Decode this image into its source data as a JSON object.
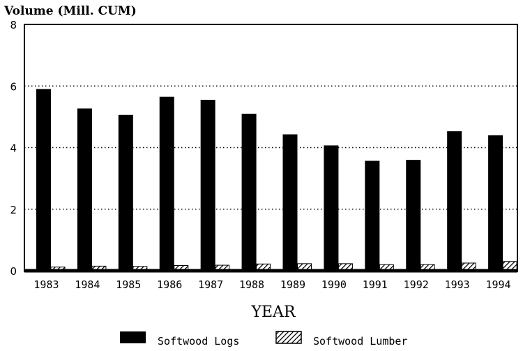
{
  "chart_data": {
    "type": "bar",
    "ylabel": "Volume (Mill. CUM)",
    "xlabel": "YEAR",
    "categories": [
      "1983",
      "1984",
      "1985",
      "1986",
      "1987",
      "1988",
      "1989",
      "1990",
      "1991",
      "1992",
      "1993",
      "1994"
    ],
    "series": [
      {
        "name": "Softwood Logs",
        "values": [
          5.9,
          5.27,
          5.06,
          5.65,
          5.55,
          5.1,
          4.43,
          4.07,
          3.57,
          3.6,
          4.53,
          4.4
        ],
        "fill": "solid",
        "color": "#000000"
      },
      {
        "name": "Softwood Lumber",
        "values": [
          0.12,
          0.15,
          0.14,
          0.17,
          0.18,
          0.22,
          0.23,
          0.23,
          0.2,
          0.2,
          0.25,
          0.3
        ],
        "fill": "hatched",
        "color": "#000000"
      }
    ],
    "ylim": [
      0,
      8
    ],
    "yticks": [
      0,
      2,
      4,
      6,
      8
    ],
    "grid": "dotted horizontal",
    "legend_position": "bottom"
  }
}
